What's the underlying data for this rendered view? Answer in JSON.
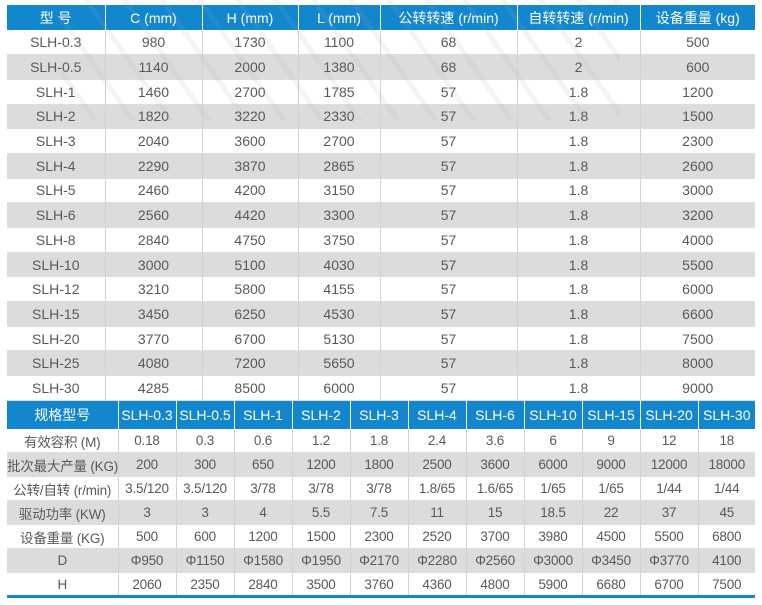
{
  "colors": {
    "header_blue": "#1287ce",
    "stripe_gray": "#dcdcdc",
    "text_gray": "#58595b",
    "bottom_line_blue": "#1287ce"
  },
  "table1": {
    "headers": [
      "型 号",
      "C (mm)",
      "H (mm)",
      "L (mm)",
      "公转转速 (r/min)",
      "自转转速 (r/min)",
      "设备重量 (kg)"
    ],
    "rows": [
      [
        "SLH-0.3",
        "980",
        "1730",
        "1100",
        "68",
        "2",
        "500"
      ],
      [
        "SLH-0.5",
        "1140",
        "2000",
        "1380",
        "68",
        "2",
        "600"
      ],
      [
        "SLH-1",
        "1460",
        "2700",
        "1785",
        "57",
        "1.8",
        "1200"
      ],
      [
        "SLH-2",
        "1820",
        "3220",
        "2330",
        "57",
        "1.8",
        "1500"
      ],
      [
        "SLH-3",
        "2040",
        "3600",
        "2700",
        "57",
        "1.8",
        "2300"
      ],
      [
        "SLH-4",
        "2290",
        "3870",
        "2865",
        "57",
        "1.8",
        "2600"
      ],
      [
        "SLH-5",
        "2460",
        "4200",
        "3150",
        "57",
        "1.8",
        "3000"
      ],
      [
        "SLH-6",
        "2560",
        "4420",
        "3300",
        "57",
        "1.8",
        "3200"
      ],
      [
        "SLH-8",
        "2840",
        "4750",
        "3750",
        "57",
        "1.8",
        "4000"
      ],
      [
        "SLH-10",
        "3000",
        "5100",
        "4030",
        "57",
        "1.8",
        "5500"
      ],
      [
        "SLH-12",
        "3210",
        "5800",
        "4155",
        "57",
        "1.8",
        "6000"
      ],
      [
        "SLH-15",
        "3450",
        "6250",
        "4530",
        "57",
        "1.8",
        "6600"
      ],
      [
        "SLH-20",
        "3770",
        "6700",
        "5130",
        "57",
        "1.8",
        "7500"
      ],
      [
        "SLH-25",
        "4080",
        "7200",
        "5650",
        "57",
        "1.8",
        "8000"
      ],
      [
        "SLH-30",
        "4285",
        "8500",
        "6000",
        "57",
        "1.8",
        "9000"
      ]
    ]
  },
  "table2": {
    "headers": [
      "规格型号",
      "SLH-0.3",
      "SLH-0.5",
      "SLH-1",
      "SLH-2",
      "SLH-3",
      "SLH-4",
      "SLH-6",
      "SLH-10",
      "SLH-15",
      "SLH-20",
      "SLH-30"
    ],
    "rows": [
      [
        "有效容积 (M)",
        "0.18",
        "0.3",
        "0.6",
        "1.2",
        "1.8",
        "2.4",
        "3.6",
        "6",
        "9",
        "12",
        "18"
      ],
      [
        "批次最大产量 (KG)",
        "200",
        "300",
        "650",
        "1200",
        "1800",
        "2500",
        "3600",
        "6000",
        "9000",
        "12000",
        "18000"
      ],
      [
        "公转/自转 (r/min)",
        "3.5/120",
        "3.5/120",
        "3/78",
        "3/78",
        "3/78",
        "1.8/65",
        "1.6/65",
        "1/65",
        "1/65",
        "1/44",
        "1/44"
      ],
      [
        "驱动功率 (KW)",
        "3",
        "3",
        "4",
        "5.5",
        "7.5",
        "11",
        "15",
        "18.5",
        "22",
        "37",
        "45"
      ],
      [
        "设备重量 (KG)",
        "500",
        "600",
        "1200",
        "1500",
        "2300",
        "2520",
        "3700",
        "3980",
        "4500",
        "5500",
        "6800"
      ],
      [
        "D",
        "Φ950",
        "Φ1150",
        "Φ1580",
        "Φ1950",
        "Φ2170",
        "Φ2280",
        "Φ2560",
        "Φ3000",
        "Φ3450",
        "Φ3770",
        "4100"
      ],
      [
        "H",
        "2060",
        "2350",
        "2840",
        "3500",
        "3760",
        "4360",
        "4800",
        "5900",
        "6680",
        "6700",
        "7500"
      ]
    ]
  }
}
